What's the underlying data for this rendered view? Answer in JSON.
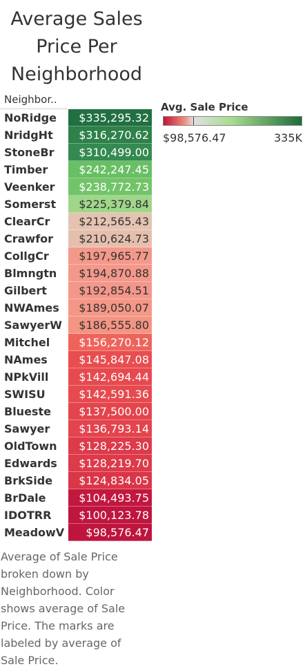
{
  "title": "Average Sales Price Per Neighborhood",
  "column_header": "Neighbor..",
  "legend": {
    "title": "Avg. Sale Price",
    "min_label": "$98,576.47",
    "max_label": "335K",
    "scale_min": 98576.47,
    "scale_max": 335295.32,
    "scale_center": 150000,
    "colors": {
      "low": "#c0143c",
      "mid_low": "#f28b79",
      "center": "#e0e0e0",
      "mid_high": "#a7dd8f",
      "high": "#1e6b3a"
    }
  },
  "caption": "Average of Sale Price broken down by Neighborhood.  Color shows average of Sale Price.  The marks are labeled by average of Sale Price.",
  "chart_data": {
    "type": "table",
    "title": "Average Sales Price Per Neighborhood",
    "categories": [
      "NoRidge",
      "NridgHt",
      "StoneBr",
      "Timber",
      "Veenker",
      "Somerst",
      "ClearCr",
      "Crawfor",
      "CollgCr",
      "Blmngtn",
      "Gilbert",
      "NWAmes",
      "SawyerW",
      "Mitchel",
      "NAmes",
      "NPkVill",
      "SWISU",
      "Blueste",
      "Sawyer",
      "OldTown",
      "Edwards",
      "BrkSide",
      "BrDale",
      "IDOTRR",
      "MeadowV"
    ],
    "values": [
      335295.32,
      316270.62,
      310499.0,
      242247.45,
      238772.73,
      225379.84,
      212565.43,
      210624.73,
      197965.77,
      194870.88,
      192854.51,
      189050.07,
      186555.8,
      156270.12,
      145847.08,
      142694.44,
      142591.36,
      137500.0,
      136793.14,
      128225.3,
      128219.7,
      124834.05,
      104493.75,
      100123.78,
      98576.47
    ],
    "labels": [
      "$335,295.32",
      "$316,270.62",
      "$310,499.00",
      "$242,247.45",
      "$238,772.73",
      "$225,379.84",
      "$212,565.43",
      "$210,624.73",
      "$197,965.77",
      "$194,870.88",
      "$192,854.51",
      "$189,050.07",
      "$186,555.80",
      "$156,270.12",
      "$145,847.08",
      "$142,694.44",
      "$142,591.36",
      "$137,500.00",
      "$136,793.14",
      "$128,225.30",
      "$128,219.70",
      "$124,834.05",
      "$104,493.75",
      "$100,123.78",
      "$98,576.47"
    ],
    "colors": [
      "#217041",
      "#2e8149",
      "#348a50",
      "#69bf63",
      "#72c468",
      "#9fd68a",
      "#e5c3b1",
      "#e5bfad",
      "#f4998a",
      "#f4988a",
      "#f4978a",
      "#f49786",
      "#f49483",
      "#ee645b",
      "#e84d50",
      "#e64a4f",
      "#e64a4f",
      "#e4454d",
      "#e3444d",
      "#dd3a4a",
      "#dd3a4a",
      "#da3648",
      "#c2173f",
      "#bf153e",
      "#be143d"
    ]
  }
}
